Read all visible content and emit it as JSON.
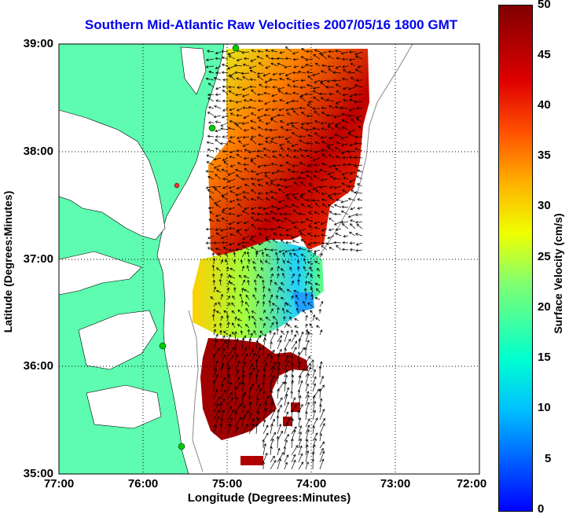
{
  "title": "Southern Mid-Atlantic Raw Velocities 2007/05/16 1800 GMT",
  "xlabel": "Longitude (Degrees:Minutes)",
  "ylabel": "Latitude (Degrees:Minutes)",
  "colorbar": {
    "label": "Surface Velocity (cm/s)",
    "ticks": [
      "50",
      "45",
      "40",
      "35",
      "30",
      "25",
      "20",
      "15",
      "10",
      "5",
      "0"
    ],
    "min": 0,
    "max": 50
  },
  "x_ticks": [
    "77:00",
    "76:00",
    "75:00",
    "74:00",
    "73:00",
    "72:00"
  ],
  "y_ticks": [
    "39:00",
    "38:00",
    "37:00",
    "36:00",
    "35:00"
  ],
  "colors": {
    "land": "#5dfcb0",
    "title": "#0000ee",
    "grid": "#000000",
    "station": "#00cc00"
  },
  "chart_data": {
    "type": "heatmap",
    "title": "Southern Mid-Atlantic Raw Velocities 2007/05/16 1800 GMT",
    "xlabel": "Longitude (Degrees:Minutes)",
    "ylabel": "Latitude (Degrees:Minutes)",
    "xlim": [
      -77,
      -72
    ],
    "ylim": [
      35,
      39
    ],
    "value_range": [
      0,
      50
    ],
    "units": "cm/s",
    "grid": true
  }
}
